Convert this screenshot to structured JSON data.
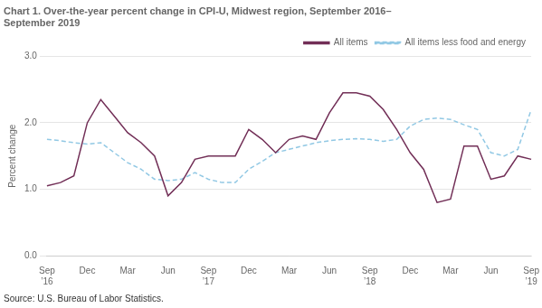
{
  "chart_data": {
    "type": "line",
    "title": "Chart 1. Over-the-year percent change in CPI-U, Midwest region, September 2016–\nSeptember 2019",
    "ylabel": "Percent change",
    "source": "Source: U.S. Bureau of Labor Statistics.",
    "categories": [
      "Sep\n’16",
      null,
      null,
      "Dec",
      null,
      null,
      "Mar",
      null,
      null,
      "Jun",
      null,
      null,
      "Sep\n’17",
      null,
      null,
      "Dec",
      null,
      null,
      "Mar",
      null,
      null,
      "Jun",
      null,
      null,
      "Sep\n’18",
      null,
      null,
      "Dec",
      null,
      null,
      "Mar",
      null,
      null,
      "Jun",
      null,
      null,
      "Sep\n’19"
    ],
    "series": [
      {
        "name": "All items",
        "color": "#722F57",
        "line_style": "solid",
        "values": [
          1.05,
          1.1,
          1.2,
          2.0,
          2.35,
          2.1,
          1.85,
          1.7,
          1.5,
          0.9,
          1.1,
          1.45,
          1.5,
          1.5,
          1.5,
          1.9,
          1.75,
          1.55,
          1.75,
          1.8,
          1.75,
          2.15,
          2.45,
          2.45,
          2.4,
          2.2,
          1.9,
          1.55,
          1.3,
          0.8,
          0.85,
          1.65,
          1.65,
          1.15,
          1.2,
          1.5,
          1.45
        ]
      },
      {
        "name": "All items less food and energy",
        "color": "#91c8e4",
        "line_style": "dashed",
        "values": [
          1.75,
          1.73,
          1.7,
          1.68,
          1.7,
          1.55,
          1.4,
          1.3,
          1.15,
          1.13,
          1.15,
          1.25,
          1.15,
          1.1,
          1.1,
          1.3,
          1.42,
          1.55,
          1.6,
          1.65,
          1.7,
          1.73,
          1.75,
          1.76,
          1.75,
          1.72,
          1.75,
          1.95,
          2.05,
          2.07,
          2.05,
          1.97,
          1.9,
          1.55,
          1.5,
          1.6,
          2.2
        ]
      }
    ],
    "ylim": [
      0.0,
      3.0
    ],
    "yticks": [
      {
        "value": 0,
        "label": "0.0"
      },
      {
        "value": 1,
        "label": "1.0"
      },
      {
        "value": 2,
        "label": "2.0"
      },
      {
        "value": 3,
        "label": "3.0"
      }
    ],
    "grid": "y",
    "legend": "top"
  }
}
